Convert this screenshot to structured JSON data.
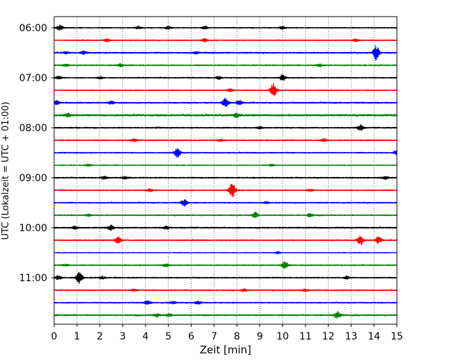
{
  "chart_data": {
    "type": "line",
    "subtype": "seismogram-helicorder",
    "xlabel": "Zeit  [min]",
    "ylabel": "UTC (Lokalzeit = UTC + 01:00)",
    "xlim": [
      0,
      15
    ],
    "x_ticks": [
      "0",
      "1",
      "2",
      "3",
      "4",
      "5",
      "6",
      "7",
      "8",
      "9",
      "10",
      "11",
      "12",
      "13",
      "14",
      "15"
    ],
    "y_tick_labels": [
      "06:00",
      "07:00",
      "08:00",
      "09:00",
      "10:00",
      "11:00"
    ],
    "y_tick_rows": [
      0,
      4,
      8,
      12,
      16,
      20
    ],
    "grid": "vertical-dotted",
    "row_minutes": 15,
    "colors": [
      "#000000",
      "#ff0000",
      "#0000ff",
      "#008000"
    ],
    "traces": [
      {
        "start": "06:00",
        "noise": 0.9,
        "events": [
          {
            "x": 0.25,
            "amp": 4
          },
          {
            "x": 3.7,
            "amp": 2
          },
          {
            "x": 5.0,
            "amp": 2
          },
          {
            "x": 6.6,
            "amp": 2
          },
          {
            "x": 10.0,
            "amp": 2
          }
        ]
      },
      {
        "start": "06:15",
        "noise": 0.9,
        "events": [
          {
            "x": 2.3,
            "amp": 2
          },
          {
            "x": 6.6,
            "amp": 2.5
          },
          {
            "x": 13.2,
            "amp": 2
          }
        ]
      },
      {
        "start": "06:30",
        "noise": 1.2,
        "events": [
          {
            "x": 0.5,
            "amp": 1.5
          },
          {
            "x": 1.3,
            "amp": 2
          },
          {
            "x": 6.2,
            "amp": 1.5
          },
          {
            "x": 14.1,
            "amp": 11
          }
        ]
      },
      {
        "start": "06:45",
        "noise": 1.0,
        "events": [
          {
            "x": 0.5,
            "amp": 1.5
          },
          {
            "x": 2.9,
            "amp": 2
          },
          {
            "x": 11.6,
            "amp": 2
          }
        ]
      },
      {
        "start": "07:00",
        "noise": 1.0,
        "events": [
          {
            "x": 0.2,
            "amp": 2
          },
          {
            "x": 2.0,
            "amp": 1.5
          },
          {
            "x": 7.2,
            "amp": 2
          },
          {
            "x": 10.0,
            "amp": 4
          }
        ]
      },
      {
        "start": "07:15",
        "noise": 0.9,
        "events": [
          {
            "x": 7.7,
            "amp": 2
          },
          {
            "x": 9.6,
            "amp": 10
          }
        ]
      },
      {
        "start": "07:30",
        "noise": 1.2,
        "events": [
          {
            "x": 0.1,
            "amp": 3
          },
          {
            "x": 2.5,
            "amp": 2
          },
          {
            "x": 7.5,
            "amp": 6
          },
          {
            "x": 8.1,
            "amp": 4
          }
        ]
      },
      {
        "start": "07:45",
        "noise": 1.6,
        "events": [
          {
            "x": 0.6,
            "amp": 2
          },
          {
            "x": 8.0,
            "amp": 3
          }
        ]
      },
      {
        "start": "08:00",
        "noise": 1.1,
        "events": [
          {
            "x": 9.0,
            "amp": 1.5
          },
          {
            "x": 13.4,
            "amp": 4
          }
        ]
      },
      {
        "start": "08:15",
        "noise": 1.0,
        "events": [
          {
            "x": 3.5,
            "amp": 2
          },
          {
            "x": 7.3,
            "amp": 1.5
          },
          {
            "x": 11.8,
            "amp": 2
          }
        ]
      },
      {
        "start": "08:30",
        "noise": 1.0,
        "events": [
          {
            "x": 5.4,
            "amp": 7
          },
          {
            "x": 15.0,
            "amp": 3
          }
        ]
      },
      {
        "start": "08:45",
        "noise": 0.8,
        "events": [
          {
            "x": 1.5,
            "amp": 1.5
          },
          {
            "x": 9.5,
            "amp": 1.5
          }
        ]
      },
      {
        "start": "09:00",
        "noise": 1.1,
        "events": [
          {
            "x": 2.2,
            "amp": 2
          },
          {
            "x": 3.1,
            "amp": 2
          },
          {
            "x": 14.5,
            "amp": 2
          }
        ]
      },
      {
        "start": "09:15",
        "noise": 1.0,
        "events": [
          {
            "x": 4.2,
            "amp": 2
          },
          {
            "x": 7.8,
            "amp": 11
          },
          {
            "x": 11.2,
            "amp": 1.5
          }
        ]
      },
      {
        "start": "09:30",
        "noise": 1.0,
        "events": [
          {
            "x": 5.7,
            "amp": 5
          },
          {
            "x": 9.3,
            "amp": 1.5
          }
        ]
      },
      {
        "start": "09:45",
        "noise": 1.0,
        "events": [
          {
            "x": 1.5,
            "amp": 1.5
          },
          {
            "x": 8.8,
            "amp": 4
          },
          {
            "x": 11.2,
            "amp": 2.5
          }
        ]
      },
      {
        "start": "10:00",
        "noise": 1.2,
        "events": [
          {
            "x": 0.9,
            "amp": 2
          },
          {
            "x": 2.5,
            "amp": 4
          },
          {
            "x": 4.9,
            "amp": 2
          }
        ]
      },
      {
        "start": "10:15",
        "noise": 1.0,
        "events": [
          {
            "x": 2.8,
            "amp": 5
          },
          {
            "x": 13.4,
            "amp": 7
          },
          {
            "x": 14.2,
            "amp": 5
          }
        ]
      },
      {
        "start": "10:30",
        "noise": 0.7,
        "events": [
          {
            "x": 9.8,
            "amp": 1.2
          }
        ]
      },
      {
        "start": "10:45",
        "noise": 1.0,
        "events": [
          {
            "x": 0.5,
            "amp": 1.5
          },
          {
            "x": 4.9,
            "amp": 2
          },
          {
            "x": 10.1,
            "amp": 6
          }
        ]
      },
      {
        "start": "11:00",
        "noise": 1.0,
        "events": [
          {
            "x": 0.2,
            "amp": 3
          },
          {
            "x": 1.1,
            "amp": 9
          },
          {
            "x": 2.1,
            "amp": 2
          },
          {
            "x": 12.8,
            "amp": 2
          }
        ]
      },
      {
        "start": "11:15",
        "noise": 1.0,
        "events": [
          {
            "x": 3.5,
            "amp": 1.5
          },
          {
            "x": 8.3,
            "amp": 2
          },
          {
            "x": 11.0,
            "amp": 1.5
          }
        ]
      },
      {
        "start": "11:30",
        "noise": 1.0,
        "events": [
          {
            "x": 4.1,
            "amp": 3
          },
          {
            "x": 5.2,
            "amp": 2
          },
          {
            "x": 6.3,
            "amp": 2
          }
        ]
      },
      {
        "start": "11:45",
        "noise": 1.2,
        "events": [
          {
            "x": 4.5,
            "amp": 2
          },
          {
            "x": 5.0,
            "amp": 2
          },
          {
            "x": 12.4,
            "amp": 5
          }
        ]
      }
    ]
  }
}
